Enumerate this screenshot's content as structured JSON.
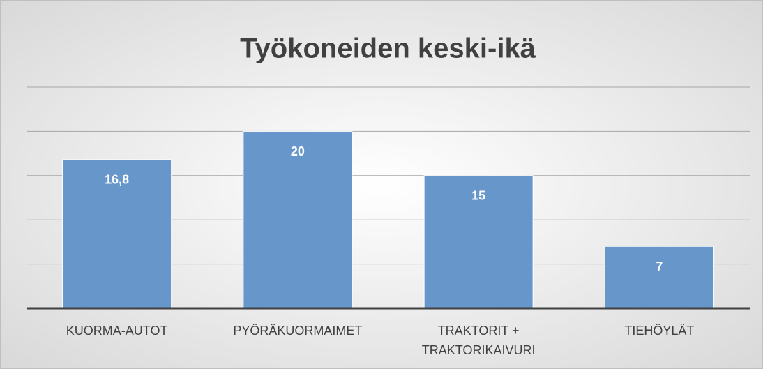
{
  "chart_data": {
    "type": "bar",
    "title": "Työkoneiden keski-ikä",
    "categories": [
      "KUORMA-AUTOT",
      "PYÖRÄKUORMAIMET",
      "TRAKTORIT + TRAKTORIKAIVURI",
      "TIEHÖYLÄT"
    ],
    "values": [
      16.8,
      20,
      15,
      7
    ],
    "value_labels": [
      "16,8",
      "20",
      "15",
      "7"
    ],
    "color": "#6796cb",
    "ylim": [
      0,
      25
    ],
    "yticks": [
      0,
      5,
      10,
      15,
      20,
      25
    ],
    "grid": true
  }
}
